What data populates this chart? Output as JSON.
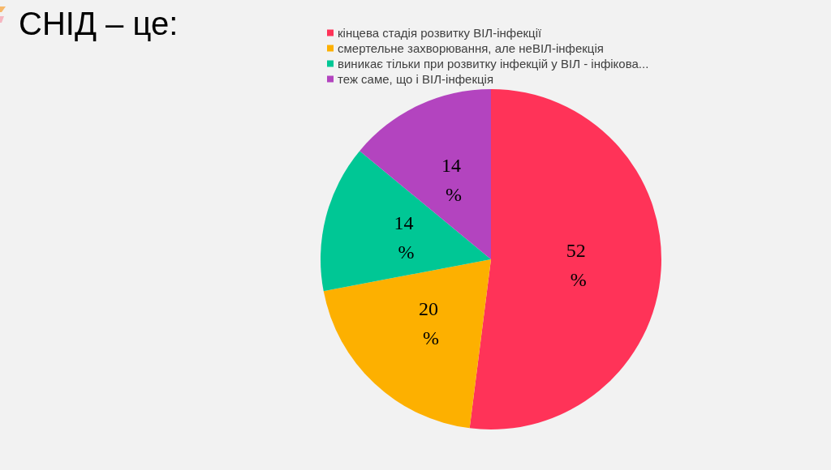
{
  "chart_data": {
    "type": "pie",
    "title": "СНІД – це:",
    "categories": [
      "кінцева стадія розвитку ВІЛ-інфекції",
      "смертельне захворювання, але неВІЛ-інфекція",
      "виникає тільки при розвитку інфекцій у ВІЛ - інфікова...",
      "теж саме, що і ВІЛ-інфекція"
    ],
    "values": [
      52,
      20,
      14,
      14
    ],
    "colors": [
      "#ff3358",
      "#fdb000",
      "#00c795",
      "#b344bf"
    ],
    "value_labels": [
      "52 %",
      "20 %",
      "14 %",
      "14 %"
    ],
    "legend": "top"
  }
}
